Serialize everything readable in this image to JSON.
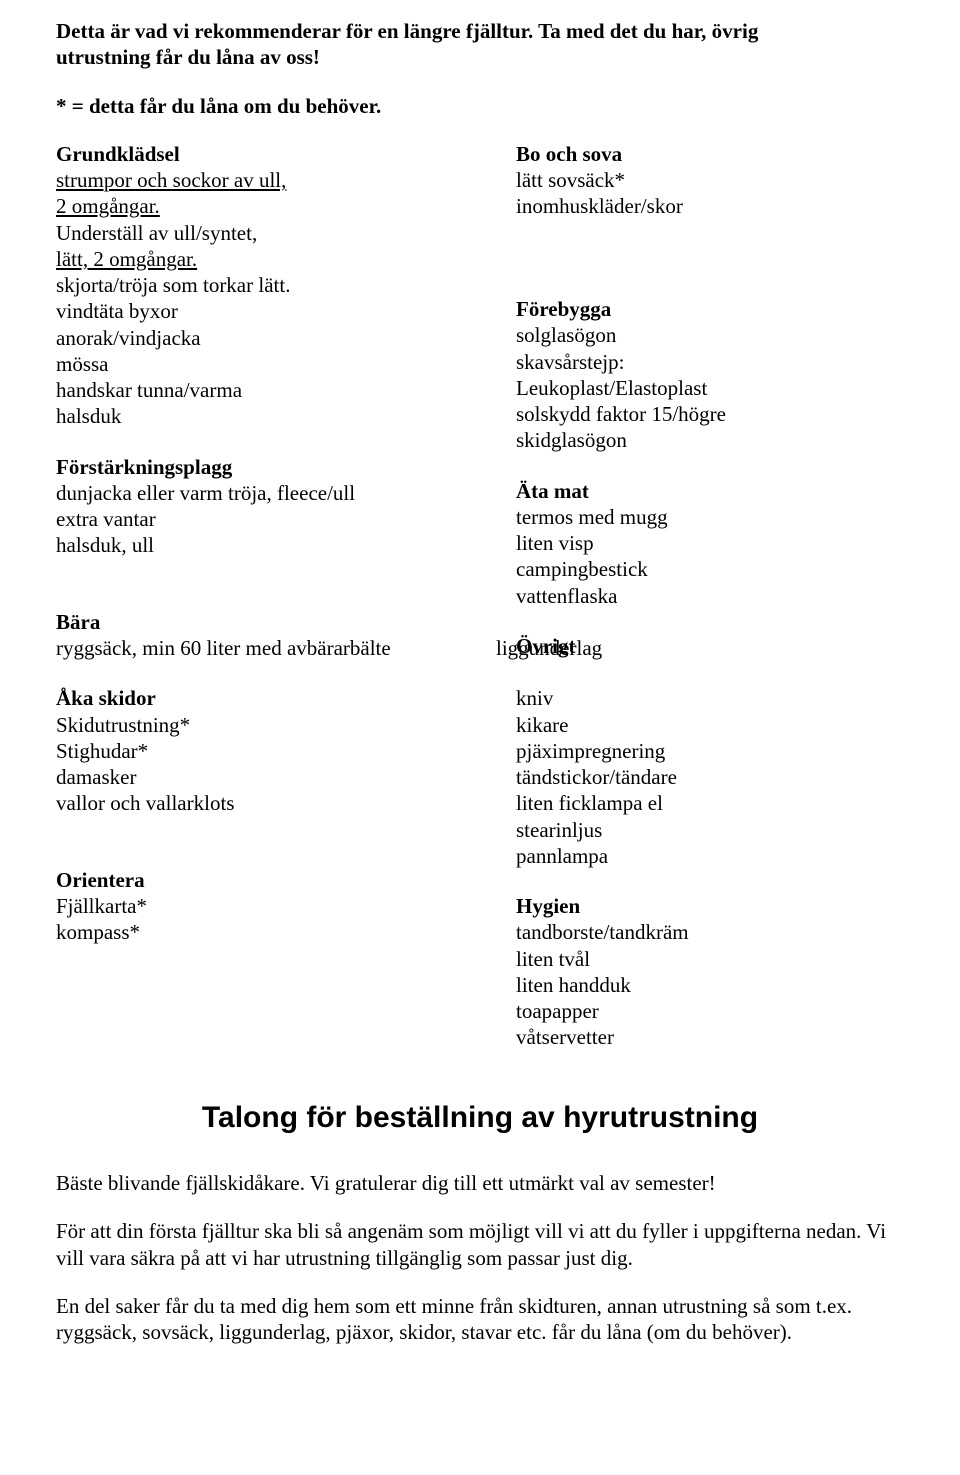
{
  "intro": {
    "line1": "Detta är vad vi rekommenderar för en längre fjälltur. Ta med det du har, övrig",
    "line2": "utrustning får du låna av oss!"
  },
  "note": "* = detta får du låna om du behöver.",
  "left": {
    "grundkladsel": {
      "title": "Grundklädsel",
      "line1_pre": "strumpor och sockor av ull,",
      "line2_pre": "2 omgångar.",
      "line3a": "Underställ av ull/syntet,",
      "line3b": "lätt, 2 omgångar.",
      "line4": "skjorta/tröja som torkar lätt.",
      "line5": "vindtäta byxor",
      "line6": "anorak/vindjacka",
      "line7": "mössa",
      "line8": "handskar tunna/varma",
      "line9": "halsduk"
    },
    "forstarkningsplagg": {
      "title": "Förstärkningsplagg",
      "line1": "dunjacka eller varm tröja, fleece/ull",
      "line2": "extra vantar",
      "line3": "halsduk, ull"
    },
    "bara": {
      "title": "Bära",
      "line1_left": "ryggsäck, min 60 liter med avbärarbälte",
      "line1_right": "liggunderlag"
    },
    "aka_skidor": {
      "title": "Åka skidor",
      "line1": "Skidutrustning*",
      "line2": "Stighudar*",
      "line3": "damasker",
      "line4": "vallor och vallarklots"
    },
    "orientera": {
      "title": "Orientera",
      "line1": "Fjällkarta*",
      "line2": "kompass*"
    }
  },
  "right": {
    "bo_och_sova": {
      "title": "Bo och sova",
      "line1": "lätt sovsäck*",
      "line2": "inomhuskläder/skor"
    },
    "forebygga": {
      "title": "Förebygga",
      "line1": "solglasögon",
      "line2": "skavsårstejp:",
      "line3": "Leukoplast/Elastoplast",
      "line4": "solskydd faktor 15/högre",
      "line5": "skidglasögon"
    },
    "ata_mat": {
      "title": "Äta mat",
      "line1": "termos med mugg",
      "line2": "liten visp",
      "line3": "campingbestick",
      "line4": "vattenflaska"
    },
    "ovrigt": {
      "title": "Övrigt",
      "line1": "kniv",
      "line2": "kikare",
      "line3": "pjäximpregnering",
      "line4": "tändstickor/tändare",
      "line5": "liten ficklampa el",
      "line6": "stearinljus",
      "line7": "pannlampa"
    },
    "hygien": {
      "title": "Hygien",
      "line1": "tandborste/tandkräm",
      "line2": "liten tvål",
      "line3": "liten handduk",
      "line4": "toapapper",
      "line5": "våtservetter"
    }
  },
  "talong_title": "Talong för beställning av hyrutrustning",
  "outro": {
    "p1": "Bäste blivande fjällskidåkare. Vi gratulerar dig till ett utmärkt val av semester!",
    "p2": "För att din första fjälltur ska bli så angenäm som möjligt vill vi att du fyller i uppgifterna nedan. Vi vill vara säkra på att vi har utrustning tillgänglig som passar just dig.",
    "p3": "En del saker får du ta med dig hem som ett minne från skidturen, annan utrustning så som t.ex. ryggsäck, sovsäck, liggunderlag, pjäxor, skidor, stavar etc. får du låna (om du behöver)."
  }
}
